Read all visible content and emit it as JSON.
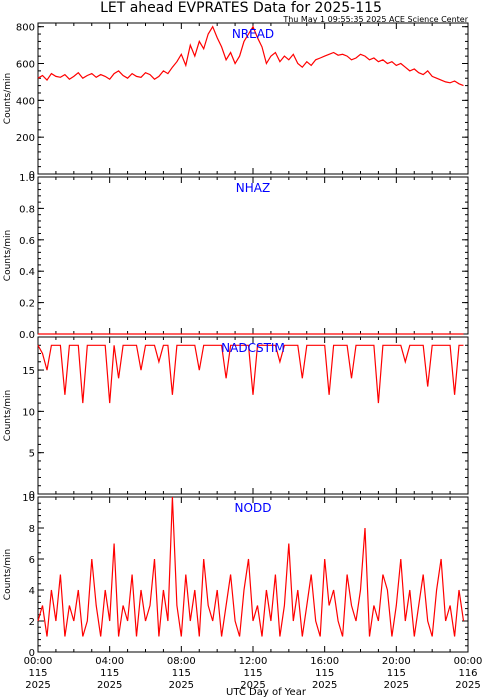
{
  "title": "LET ahead EVPRATES Data for 2025-115",
  "timestamp": "Thu May  1 09:55:35 2025 ACE Science Center",
  "colors": {
    "series": "#ff0000",
    "panel_label": "#0000ff",
    "axes": "#000000",
    "background": "#ffffff"
  },
  "chart_data": [
    {
      "type": "line",
      "panel_label": "NREAD",
      "ylabel": "Counts/min",
      "ylim": [
        0,
        820
      ],
      "yticks": [
        0,
        200,
        400,
        600,
        800
      ],
      "xlim": [
        0,
        24
      ],
      "x_step_hours": 0.25,
      "series": [
        {
          "values": [
            520,
            535,
            510,
            545,
            530,
            525,
            540,
            515,
            530,
            550,
            520,
            535,
            545,
            525,
            540,
            530,
            515,
            545,
            560,
            535,
            520,
            545,
            530,
            525,
            550,
            540,
            515,
            530,
            560,
            545,
            580,
            610,
            650,
            590,
            700,
            640,
            720,
            680,
            760,
            800,
            740,
            690,
            620,
            660,
            600,
            640,
            720,
            760,
            800,
            740,
            690,
            600,
            640,
            660,
            610,
            640,
            620,
            650,
            600,
            580,
            610,
            590,
            620,
            630,
            640,
            650,
            660,
            645,
            650,
            640,
            620,
            630,
            650,
            640,
            620,
            630,
            610,
            620,
            600,
            610,
            590,
            600,
            580,
            560,
            570,
            550,
            540,
            560,
            530,
            520,
            510,
            500,
            495,
            505,
            490,
            480
          ]
        }
      ]
    },
    {
      "type": "line",
      "panel_label": "NHAZ",
      "ylabel": "Counts/min",
      "ylim": [
        0,
        1
      ],
      "yticks": [
        0.0,
        0.2,
        0.4,
        0.6,
        0.8,
        1.0
      ],
      "xlim": [
        0,
        24
      ],
      "x_step_hours": 0.25,
      "series": [
        {
          "values": [
            0,
            0,
            0,
            0,
            0,
            0,
            0,
            0,
            0,
            0,
            0,
            0,
            0,
            0,
            0,
            0,
            0,
            0,
            0,
            0,
            0,
            0,
            0,
            0,
            0,
            0,
            0,
            0,
            0,
            0,
            0,
            0,
            0,
            0,
            0,
            0,
            0,
            0,
            0,
            0,
            0,
            0,
            0,
            0,
            0,
            0,
            0,
            0,
            0,
            0,
            0,
            0,
            0,
            0,
            0,
            0,
            0,
            0,
            0,
            0,
            0,
            0,
            0,
            0,
            0,
            0,
            0,
            0,
            0,
            0,
            0,
            0,
            0,
            0,
            0,
            0,
            0,
            0,
            0,
            0,
            0,
            0,
            0,
            0,
            0,
            0,
            0,
            0,
            0,
            0,
            0,
            0,
            0,
            0,
            0,
            0
          ]
        }
      ]
    },
    {
      "type": "line",
      "panel_label": "NADCSTIM",
      "ylabel": "Counts/min",
      "ylim": [
        0,
        19
      ],
      "yticks": [
        0,
        5,
        10,
        15
      ],
      "xlim": [
        0,
        24
      ],
      "x_step_hours": 0.25,
      "series": [
        {
          "values": [
            18,
            17,
            15,
            18,
            18,
            18,
            12,
            18,
            18,
            18,
            11,
            18,
            18,
            18,
            18,
            18,
            11,
            18,
            14,
            18,
            18,
            18,
            18,
            15,
            18,
            18,
            18,
            16,
            18,
            18,
            12,
            18,
            18,
            18,
            18,
            18,
            15,
            18,
            18,
            18,
            18,
            18,
            14,
            18,
            18,
            18,
            18,
            18,
            12,
            18,
            18,
            18,
            18,
            18,
            16,
            18,
            18,
            18,
            18,
            14,
            18,
            18,
            18,
            18,
            18,
            12,
            18,
            18,
            18,
            18,
            14,
            18,
            18,
            18,
            18,
            18,
            11,
            18,
            18,
            18,
            18,
            18,
            16,
            18,
            18,
            18,
            18,
            13,
            18,
            18,
            18,
            18,
            18,
            12,
            18,
            18
          ]
        }
      ]
    },
    {
      "type": "line",
      "panel_label": "NODD",
      "ylabel": "Counts/min",
      "xlabel": "UTC Day of Year",
      "ylim": [
        0,
        10
      ],
      "yticks": [
        0,
        2,
        4,
        6,
        8,
        10
      ],
      "xlim": [
        0,
        24
      ],
      "x_step_hours": 0.25,
      "series": [
        {
          "values": [
            2,
            3,
            1,
            4,
            2,
            5,
            1,
            3,
            2,
            4,
            1,
            2,
            6,
            3,
            1,
            4,
            2,
            7,
            1,
            3,
            2,
            5,
            1,
            4,
            2,
            3,
            6,
            1,
            4,
            2,
            10,
            3,
            1,
            5,
            2,
            4,
            1,
            6,
            3,
            2,
            4,
            1,
            3,
            5,
            2,
            1,
            4,
            6,
            2,
            3,
            1,
            4,
            2,
            5,
            1,
            3,
            7,
            2,
            4,
            1,
            3,
            5,
            2,
            1,
            6,
            3,
            4,
            2,
            1,
            5,
            3,
            2,
            4,
            8,
            1,
            3,
            2,
            5,
            4,
            1,
            3,
            6,
            2,
            4,
            1,
            3,
            5,
            2,
            1,
            4,
            6,
            2,
            3,
            1,
            4,
            2
          ]
        }
      ]
    }
  ],
  "xtick_labels": [
    {
      "hhmm": "00:00",
      "doy": "115",
      "year": "2025"
    },
    {
      "hhmm": "04:00",
      "doy": "115",
      "year": "2025"
    },
    {
      "hhmm": "08:00",
      "doy": "115",
      "year": "2025"
    },
    {
      "hhmm": "12:00",
      "doy": "115",
      "year": "2025"
    },
    {
      "hhmm": "16:00",
      "doy": "115",
      "year": "2025"
    },
    {
      "hhmm": "20:00",
      "doy": "115",
      "year": "2025"
    },
    {
      "hhmm": "00:00",
      "doy": "116",
      "year": "2025"
    }
  ]
}
